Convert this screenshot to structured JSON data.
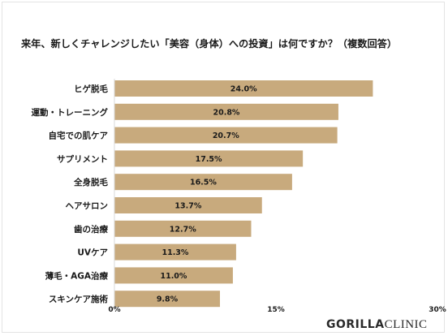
{
  "chart_data": {
    "type": "bar",
    "orientation": "horizontal",
    "title": "来年、新しくチャレンジしたい「美容（身体）への投資」は何ですか？（複数回答）",
    "categories": [
      "ヒゲ脱毛",
      "運動・トレーニング",
      "自宅での肌ケア",
      "サプリメント",
      "全身脱毛",
      "ヘアサロン",
      "歯の治療",
      "UVケア",
      "薄毛・AGA治療",
      "スキンケア施術"
    ],
    "values": [
      24.0,
      20.8,
      20.7,
      17.5,
      16.5,
      13.7,
      12.7,
      11.3,
      11.0,
      9.8
    ],
    "value_labels": [
      "24.0%",
      "20.8%",
      "20.7%",
      "17.5%",
      "16.5%",
      "13.7%",
      "12.7%",
      "11.3%",
      "11.0%",
      "9.8%"
    ],
    "xlim": [
      0,
      30
    ],
    "xticks": [
      "0%",
      "15%",
      "30%"
    ],
    "xtick_values": [
      0,
      15,
      30
    ],
    "bar_color": "#c8aa7d",
    "grid": false,
    "legend": "none"
  },
  "logo": {
    "bold": "GORILLA",
    "light": "CLINIC"
  }
}
